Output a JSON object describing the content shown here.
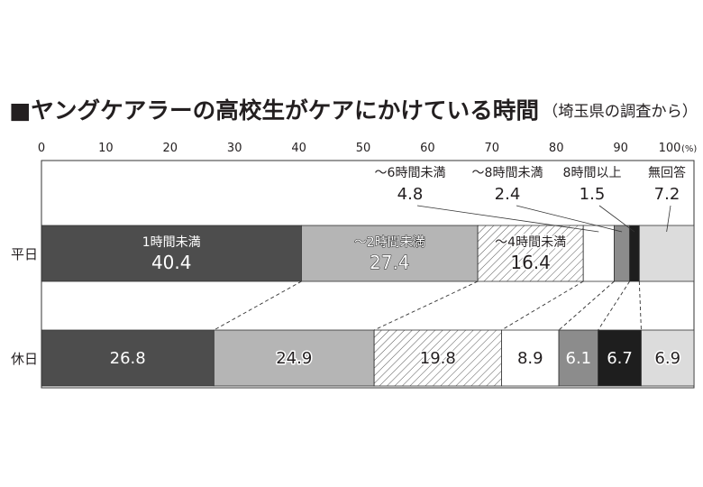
{
  "chart_data": {
    "type": "bar",
    "orientation": "horizontal",
    "stacked": true,
    "title": "■ヤングケアラーの高校生がケアにかけている時間",
    "subtitle": "（埼玉県の調査から）",
    "categories": [
      "平日",
      "休日"
    ],
    "xticks": [
      0,
      10,
      20,
      30,
      40,
      50,
      60,
      70,
      80,
      90,
      100
    ],
    "x_unit": "(%)",
    "xlim": [
      0,
      100
    ],
    "grid": false,
    "legend": "none",
    "series": [
      {
        "name": "1時間未満",
        "values": [
          40.4,
          26.8
        ],
        "color": "#4d4d4d"
      },
      {
        "name": "～2時間未満",
        "values": [
          27.4,
          24.9
        ],
        "color": "#b5b5b5"
      },
      {
        "name": "～4時間未満",
        "values": [
          16.4,
          19.8
        ],
        "color": "#ffffff",
        "pattern": "diagonal-hatch"
      },
      {
        "name": "～6時間未満",
        "values": [
          4.8,
          8.9
        ],
        "color": "#ffffff"
      },
      {
        "name": "～8時間未満",
        "values": [
          2.4,
          6.1
        ],
        "color": "#8c8c8c"
      },
      {
        "name": "8時間以上",
        "values": [
          1.5,
          6.7
        ],
        "color": "#1e1e1e"
      },
      {
        "name": "無回答",
        "values": [
          7.2,
          6.9
        ],
        "color": "#dcdcdc"
      }
    ]
  }
}
